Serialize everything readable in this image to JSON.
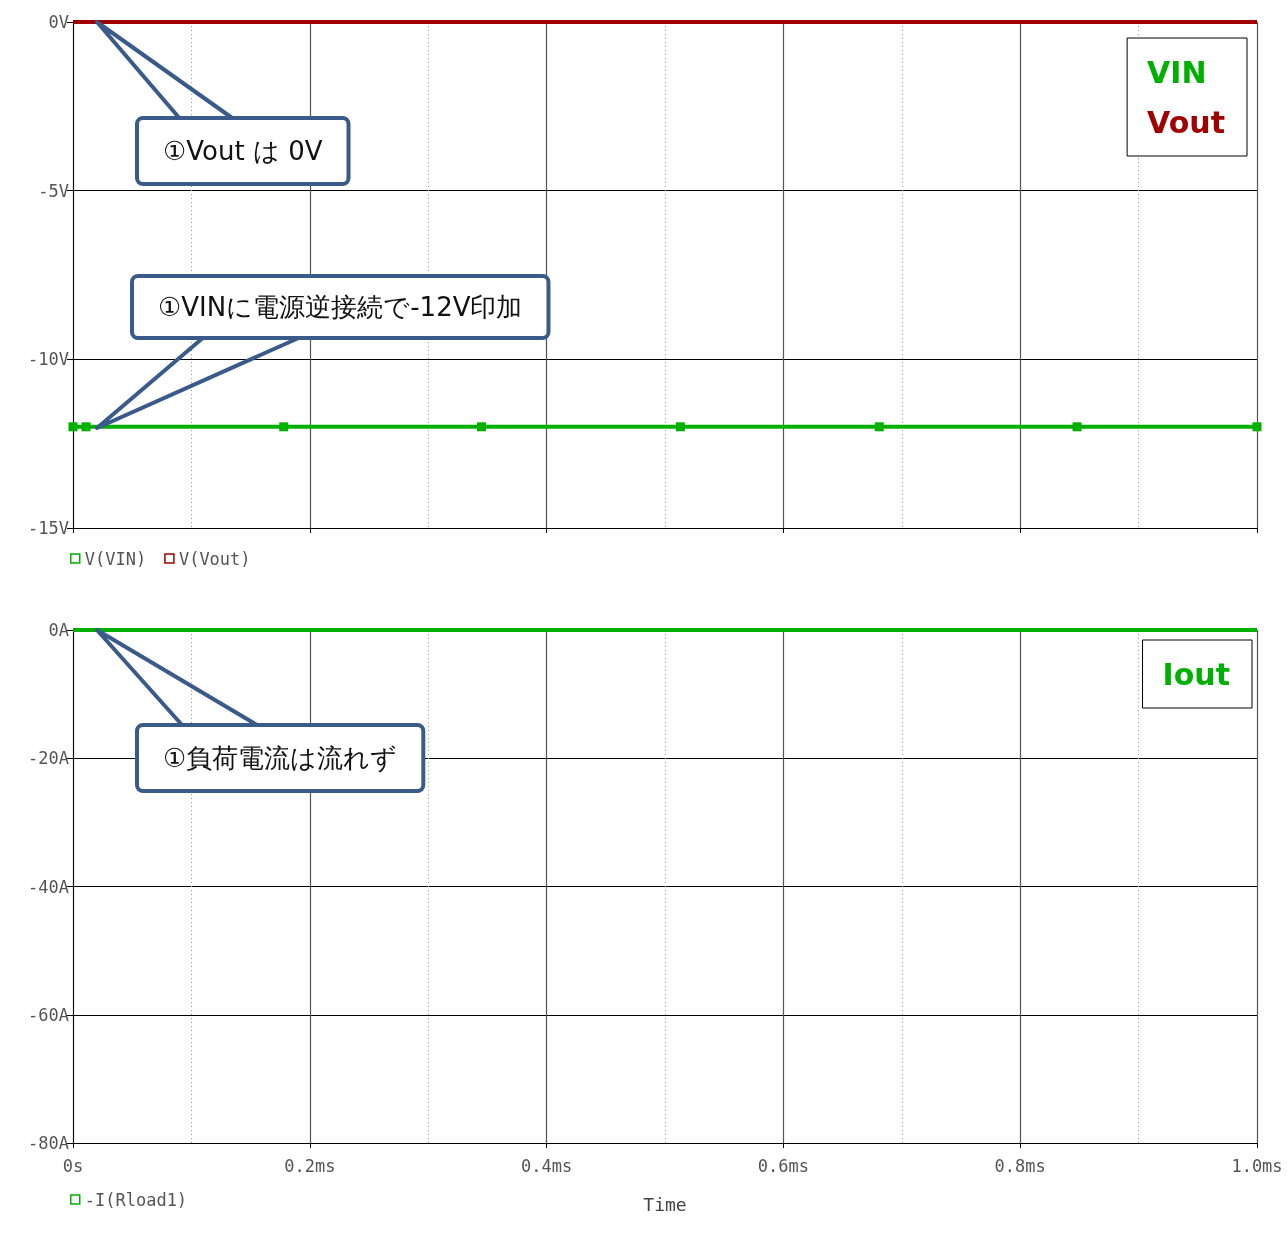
{
  "chart_data": [
    {
      "type": "line",
      "xlim": [
        0,
        1.0
      ],
      "xticks": [
        {
          "value": 0,
          "label": null
        },
        {
          "value": 0.2,
          "label": null
        },
        {
          "value": 0.4,
          "label": null
        },
        {
          "value": 0.6,
          "label": null
        },
        {
          "value": 0.8,
          "label": null
        },
        {
          "value": 1.0,
          "label": null
        }
      ],
      "tick_labels": "y",
      "ylim": [
        -15,
        0
      ],
      "yticks": [
        {
          "value": -15,
          "label": "-15V"
        },
        {
          "value": -10,
          "label": "-10V"
        },
        {
          "value": -5,
          "label": "-5V"
        },
        {
          "value": 0,
          "label": "0V"
        }
      ],
      "grid": true,
      "legend": "bottom left",
      "series": [
        {
          "name": "V(VIN)",
          "color": "#00b000",
          "marker": "square",
          "x": [
            0,
            0.011,
            0.178,
            0.345,
            0.513,
            0.681,
            0.848,
            1.0
          ],
          "values": [
            -12,
            -12,
            -12,
            -12,
            -12,
            -12,
            -12,
            -12
          ]
        },
        {
          "name": "V(Vout)",
          "color": "#a00000",
          "marker": "none",
          "x": [
            0,
            1.0
          ],
          "values": [
            0,
            0
          ]
        }
      ],
      "annotations": [
        "①Vout は 0V",
        "①VINに電源逆接続で-12V印加",
        "VIN",
        "Vout"
      ]
    },
    {
      "type": "line",
      "xlabel": "Time",
      "xlim": [
        0,
        1.0
      ],
      "xticks": [
        {
          "value": 0,
          "label": "0s"
        },
        {
          "value": 0.2,
          "label": "0.2ms"
        },
        {
          "value": 0.4,
          "label": "0.4ms"
        },
        {
          "value": 0.6,
          "label": "0.6ms"
        },
        {
          "value": 0.8,
          "label": "0.8ms"
        },
        {
          "value": 1.0,
          "label": "1.0ms"
        }
      ],
      "ylim": [
        -80,
        0
      ],
      "yticks": [
        {
          "value": -80,
          "label": "-80A"
        },
        {
          "value": -60,
          "label": "-60A"
        },
        {
          "value": -40,
          "label": "-40A"
        },
        {
          "value": -20,
          "label": "-20A"
        },
        {
          "value": 0,
          "label": "0A"
        }
      ],
      "grid": true,
      "legend": "bottom left",
      "series": [
        {
          "name": "-I(Rload1)",
          "color": "#00b000",
          "marker": "none",
          "x": [
            0,
            1.0
          ],
          "values": [
            0,
            0
          ]
        }
      ],
      "annotations": [
        "①負荷電流は流れず",
        "Iout"
      ]
    }
  ]
}
